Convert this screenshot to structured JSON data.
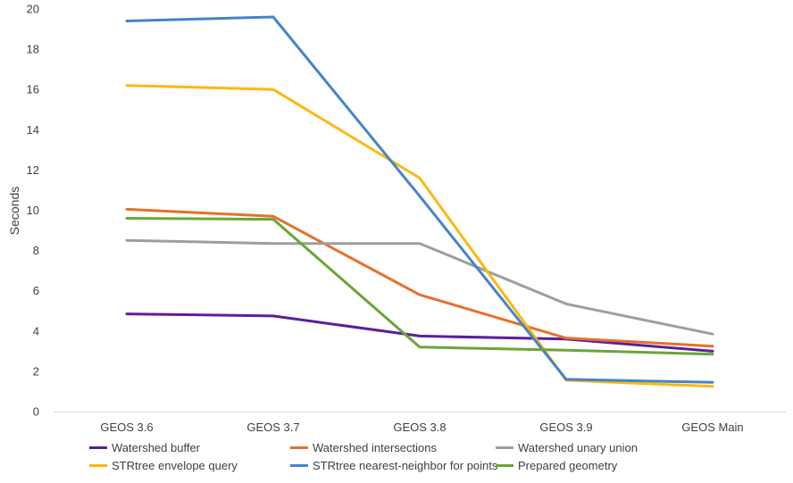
{
  "chart_data": {
    "type": "line",
    "title": "",
    "xlabel": "",
    "ylabel": "Seconds",
    "ylim": [
      0,
      20
    ],
    "yticks": [
      "0",
      "2",
      "4",
      "6",
      "8",
      "10",
      "12",
      "14",
      "16",
      "18",
      "20"
    ],
    "categories": [
      "GEOS 3.6",
      "GEOS 3.7",
      "GEOS 3.8",
      "GEOS 3.9",
      "GEOS Main"
    ],
    "grid": "none",
    "legend_position": "bottom",
    "series": [
      {
        "name": "Watershed buffer",
        "color": "#5b1f99",
        "values": [
          4.85,
          4.75,
          3.75,
          3.6,
          3.0
        ]
      },
      {
        "name": "Watershed intersections",
        "color": "#e8702a",
        "values": [
          10.05,
          9.7,
          5.8,
          3.65,
          3.25
        ]
      },
      {
        "name": "Watershed unary union",
        "color": "#9e9e9e",
        "values": [
          8.5,
          8.35,
          8.35,
          5.35,
          3.85
        ]
      },
      {
        "name": "STRtree envelope query",
        "color": "#fbb910",
        "values": [
          16.2,
          16.0,
          11.6,
          1.55,
          1.25
        ]
      },
      {
        "name": "STRtree nearest-neighbor for points",
        "color": "#4584c9",
        "values": [
          19.4,
          19.6,
          10.7,
          1.6,
          1.45
        ]
      },
      {
        "name": "Prepared geometry",
        "color": "#6aa637",
        "values": [
          9.6,
          9.55,
          3.2,
          3.05,
          2.85
        ]
      }
    ]
  }
}
